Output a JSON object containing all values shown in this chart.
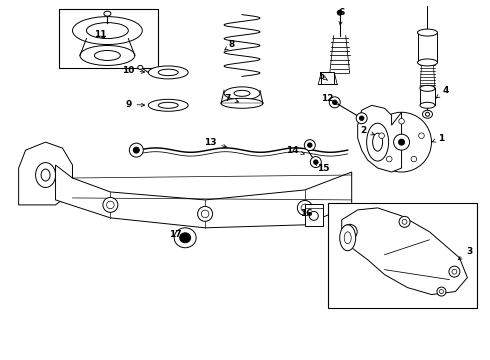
{
  "bg_color": "#ffffff",
  "line_color": "#000000",
  "label_color": "#000000",
  "fig_width": 4.9,
  "fig_height": 3.6,
  "dpi": 100
}
